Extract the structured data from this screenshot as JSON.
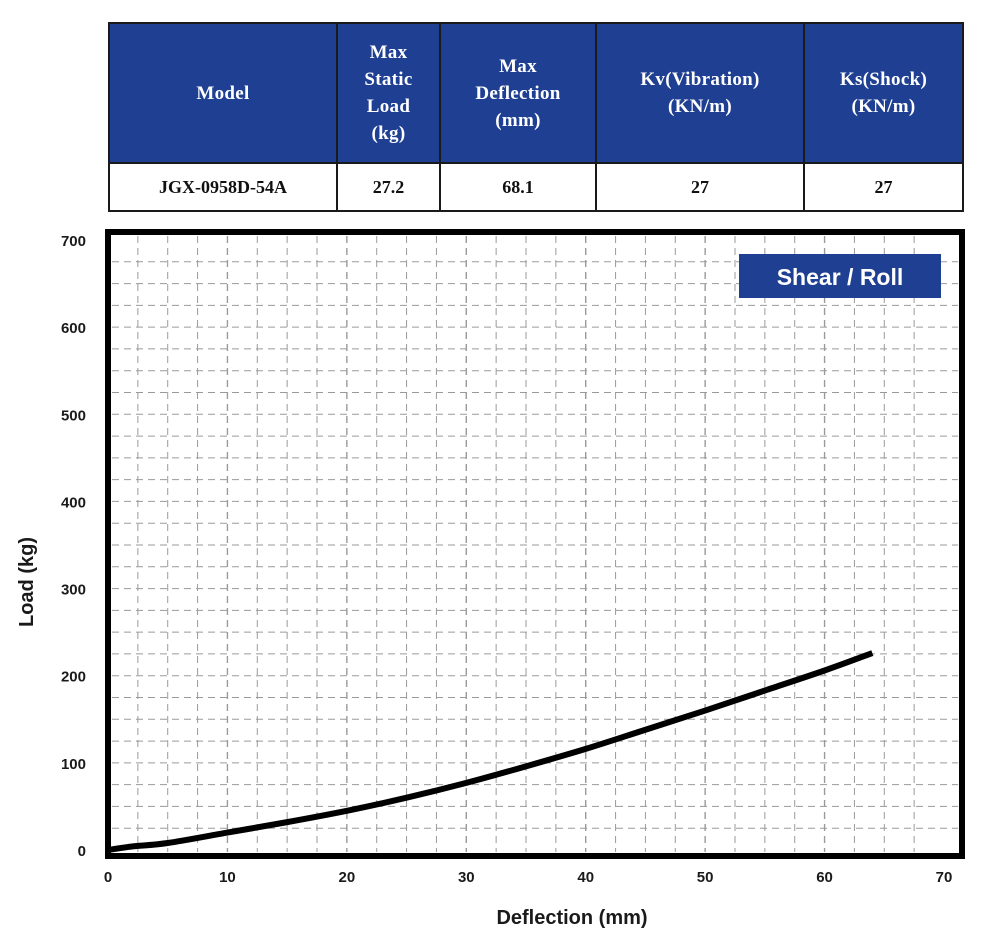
{
  "table": {
    "headers": [
      "Max\nStatic\nLoad\n(kg)",
      "Max\nDeflection\n(mm)",
      "Kv(Vibration)\n(KN/m)",
      "Ks(Shock)\n(KN/m)"
    ],
    "model_header": "Model",
    "row": {
      "model": "JGX-0958D-54A",
      "max_static_load": "27.2",
      "max_deflection": "68.1",
      "kv": "27",
      "ks": "27"
    }
  },
  "chart_data": {
    "type": "line",
    "badge": "Shear / Roll",
    "xlabel": "Deflection (mm)",
    "ylabel": "Load (kg)",
    "xlim": [
      0,
      70
    ],
    "ylim": [
      0,
      700
    ],
    "xticks": [
      "0",
      "10",
      "20",
      "30",
      "40",
      "50",
      "60",
      "70"
    ],
    "yticks": [
      "0",
      "100",
      "200",
      "300",
      "400",
      "500",
      "600",
      "700"
    ],
    "grid": true,
    "series": [
      {
        "color": "#000000",
        "x": [
          0,
          2,
          5,
          10,
          15,
          20,
          25,
          30,
          35,
          40,
          45,
          50,
          55,
          60,
          64
        ],
        "y": [
          0,
          4,
          8,
          20,
          32,
          45,
          60,
          77,
          96,
          116,
          138,
          160,
          183,
          206,
          226
        ]
      }
    ],
    "colors": {
      "badge": "#1f3f93",
      "header": "#1f3f93",
      "frame": "#000000",
      "grid": "#9a9a9a"
    }
  }
}
